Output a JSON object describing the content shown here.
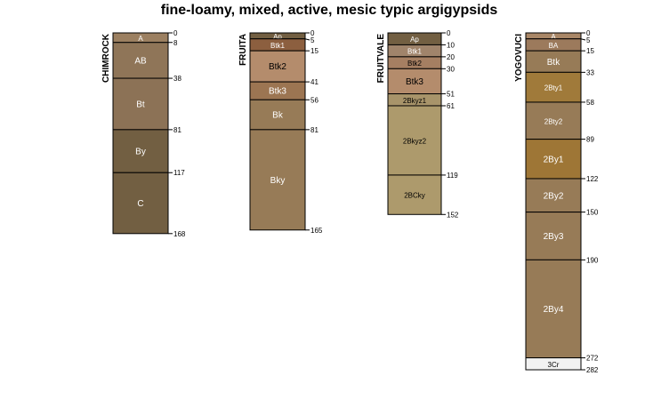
{
  "title": "fine-loamy, mixed, active, mesic typic argigypsids",
  "profiles": [
    {
      "name": "CHIMROCK",
      "horizons": [
        {
          "name": "A",
          "top": 0,
          "bottom": 8,
          "color": "#9C8061",
          "text_color": "#ffffff"
        },
        {
          "name": "AB",
          "top": 8,
          "bottom": 38,
          "color": "#8F7558",
          "text_color": "#ffffff"
        },
        {
          "name": "Bt",
          "top": 38,
          "bottom": 81,
          "color": "#8C7256",
          "text_color": "#ffffff"
        },
        {
          "name": "By",
          "top": 81,
          "bottom": 117,
          "color": "#725F42",
          "text_color": "#ffffff"
        },
        {
          "name": "C",
          "top": 117,
          "bottom": 168,
          "color": "#725F42",
          "text_color": "#ffffff"
        }
      ]
    },
    {
      "name": "FRUITA",
      "horizons": [
        {
          "name": "Ap",
          "top": 0,
          "bottom": 5,
          "color": "#725F42",
          "text_color": "#ffffff"
        },
        {
          "name": "Btk1",
          "top": 5,
          "bottom": 15,
          "color": "#8C5F3F",
          "text_color": "#ffffff"
        },
        {
          "name": "Btk2",
          "top": 15,
          "bottom": 41,
          "color": "#B48C6C",
          "text_color": "#000000"
        },
        {
          "name": "Btk3",
          "top": 41,
          "bottom": 56,
          "color": "#9C7552",
          "text_color": "#ffffff"
        },
        {
          "name": "Bk",
          "top": 56,
          "bottom": 81,
          "color": "#977B57",
          "text_color": "#ffffff"
        },
        {
          "name": "Bky",
          "top": 81,
          "bottom": 165,
          "color": "#977B57",
          "text_color": "#ffffff"
        }
      ]
    },
    {
      "name": "FRUITVALE",
      "horizons": [
        {
          "name": "Ap",
          "top": 0,
          "bottom": 10,
          "color": "#725F42",
          "text_color": "#ffffff"
        },
        {
          "name": "Btk1",
          "top": 10,
          "bottom": 20,
          "color": "#A0846B",
          "text_color": "#ffffff"
        },
        {
          "name": "Btk2",
          "top": 20,
          "bottom": 30,
          "color": "#A57F62",
          "text_color": "#000000"
        },
        {
          "name": "Btk3",
          "top": 30,
          "bottom": 51,
          "color": "#B48C6C",
          "text_color": "#000000"
        },
        {
          "name": "2Bkyz1",
          "top": 51,
          "bottom": 61,
          "color": "#A8946A",
          "text_color": "#000000"
        },
        {
          "name": "2Bkyz2",
          "top": 61,
          "bottom": 119,
          "color": "#AD9A6C",
          "text_color": "#000000"
        },
        {
          "name": "2BCky",
          "top": 119,
          "bottom": 152,
          "color": "#AD9A6C",
          "text_color": "#000000"
        }
      ]
    },
    {
      "name": "YOGOVUCI",
      "horizons": [
        {
          "name": "A",
          "top": 0,
          "bottom": 5,
          "color": "#A98767",
          "text_color": "#ffffff"
        },
        {
          "name": "BA",
          "top": 5,
          "bottom": 15,
          "color": "#9C7A5C",
          "text_color": "#ffffff"
        },
        {
          "name": "Btk",
          "top": 15,
          "bottom": 33,
          "color": "#977B57",
          "text_color": "#ffffff"
        },
        {
          "name": "2Bty1",
          "top": 33,
          "bottom": 58,
          "color": "#A07A3A",
          "text_color": "#ffffff"
        },
        {
          "name": "2Bty2",
          "top": 58,
          "bottom": 89,
          "color": "#977B57",
          "text_color": "#ffffff"
        },
        {
          "name": "2By1",
          "top": 89,
          "bottom": 122,
          "color": "#9E7636",
          "text_color": "#ffffff"
        },
        {
          "name": "2By2",
          "top": 122,
          "bottom": 150,
          "color": "#977B57",
          "text_color": "#ffffff"
        },
        {
          "name": "2By3",
          "top": 150,
          "bottom": 190,
          "color": "#977B57",
          "text_color": "#ffffff"
        },
        {
          "name": "2By4",
          "top": 190,
          "bottom": 272,
          "color": "#977B57",
          "text_color": "#ffffff"
        },
        {
          "name": "3Cr",
          "top": 272,
          "bottom": 282,
          "color": "#F2F2F2",
          "text_color": "#000000"
        }
      ]
    }
  ]
}
